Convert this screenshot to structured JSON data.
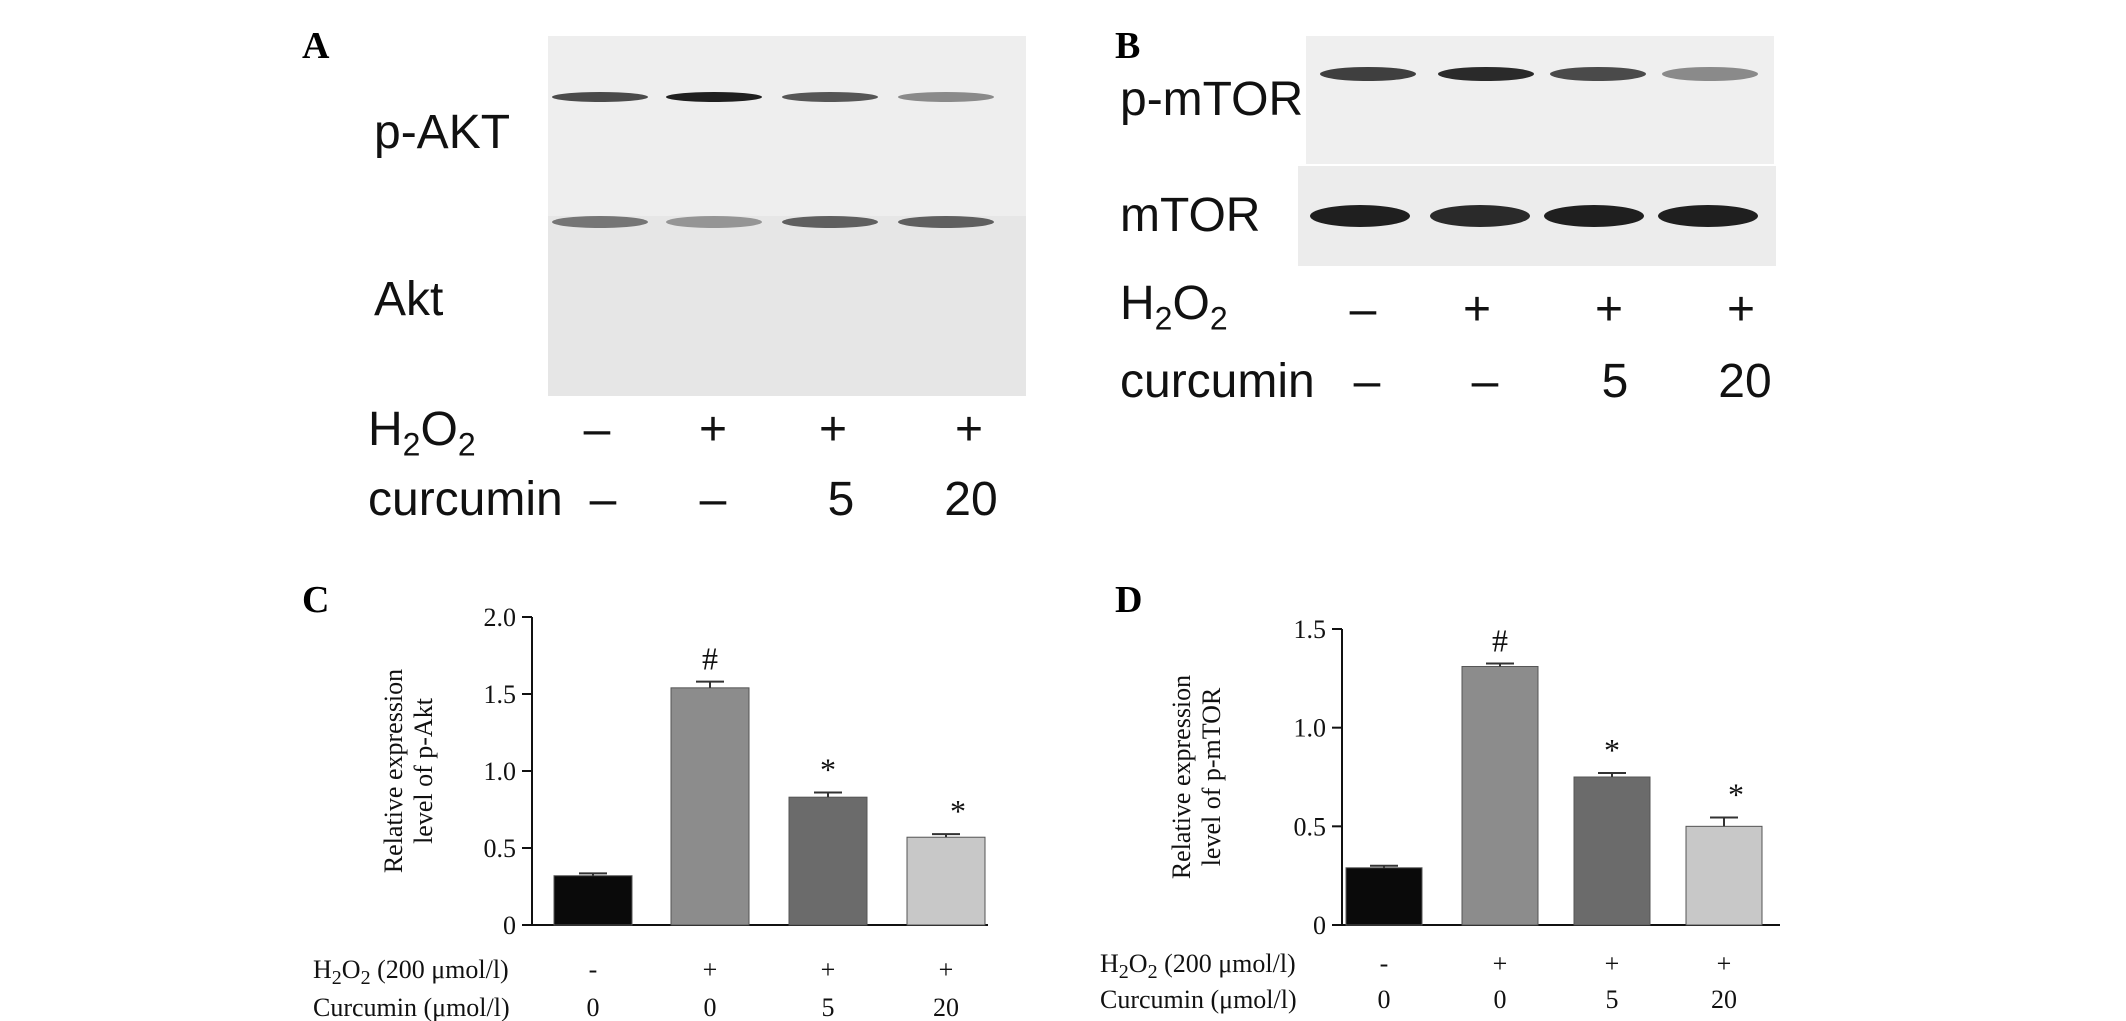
{
  "panels": {
    "A": {
      "letter": "A",
      "band_labels": [
        "p-AKT",
        "Akt"
      ],
      "row_h2o2_base": "H",
      "row_h2o2_sub1": "2",
      "row_h2o2_o": "O",
      "row_h2o2_sub2": "2",
      "row_curcumin_label": "curcumin",
      "h2o2_values": [
        "–",
        "+",
        "+",
        "+"
      ],
      "curcumin_values": [
        "–",
        "–",
        "5",
        "20"
      ]
    },
    "B": {
      "letter": "B",
      "band_labels": [
        "p-mTOR",
        "mTOR"
      ],
      "row_h2o2_base": "H",
      "row_h2o2_sub1": "2",
      "row_h2o2_o": "O",
      "row_h2o2_sub2": "2",
      "row_curcumin_label": "curcumin",
      "h2o2_values": [
        "–",
        "+",
        "+",
        "+"
      ],
      "curcumin_values": [
        "–",
        "–",
        "5",
        "20"
      ]
    },
    "C": {
      "letter": "C"
    },
    "D": {
      "letter": "D"
    }
  },
  "blot_band_intensity": {
    "A_top": [
      0.75,
      0.95,
      0.7,
      0.45
    ],
    "A_bottom": [
      0.55,
      0.4,
      0.65,
      0.65
    ],
    "B_top": [
      0.8,
      0.9,
      0.75,
      0.45
    ],
    "B_bottom": [
      0.95,
      0.9,
      0.95,
      0.95
    ]
  },
  "chart_data": [
    {
      "type": "bar",
      "panel": "C",
      "ylabel_line1": "Relative expression",
      "ylabel_line2": "level of p-Akt",
      "ylim": [
        0,
        2.0
      ],
      "yticks": [
        "0",
        "0.5",
        "1.0",
        "1.5",
        "2.0"
      ],
      "ytick_values": [
        0,
        0.5,
        1.0,
        1.5,
        2.0
      ],
      "values": [
        0.32,
        1.54,
        0.83,
        0.57
      ],
      "errors": [
        0.015,
        0.04,
        0.03,
        0.02
      ],
      "annotations": [
        "",
        "#",
        "*",
        "*"
      ],
      "bar_colors": [
        "#0a0a0a",
        "#8c8c8c",
        "#6b6b6b",
        "#c8c8c8"
      ],
      "row1_label_base": "H",
      "row1_label_sub": "2",
      "row1_label_o": "O",
      "row1_label_sub2": "2",
      "row1_label_suffix": " (200 μmol/l)",
      "row1_values": [
        "-",
        "+",
        "+",
        "+"
      ],
      "row2_label": "Curcumin (μmol/l)",
      "row2_values": [
        "0",
        "0",
        "5",
        "20"
      ]
    },
    {
      "type": "bar",
      "panel": "D",
      "ylabel_line1": "Relative expression",
      "ylabel_line2": "level of p-mTOR",
      "ylim": [
        0,
        1.5
      ],
      "yticks": [
        "0",
        "0.5",
        "1.0",
        "1.5"
      ],
      "ytick_values": [
        0,
        0.5,
        1.0,
        1.5
      ],
      "values": [
        0.29,
        1.31,
        0.75,
        0.5
      ],
      "errors": [
        0.01,
        0.015,
        0.02,
        0.045
      ],
      "annotations": [
        "",
        "#",
        "*",
        "*"
      ],
      "bar_colors": [
        "#0a0a0a",
        "#8c8c8c",
        "#6b6b6b",
        "#c8c8c8"
      ],
      "row1_label_base": "H",
      "row1_label_sub": "2",
      "row1_label_o": "O",
      "row1_label_sub2": "2",
      "row1_label_suffix": " (200 μmol/l)",
      "row1_values": [
        "-",
        "+",
        "+",
        "+"
      ],
      "row2_label": "Curcumin (μmol/l)",
      "row2_values": [
        "0",
        "0",
        "5",
        "20"
      ]
    }
  ]
}
